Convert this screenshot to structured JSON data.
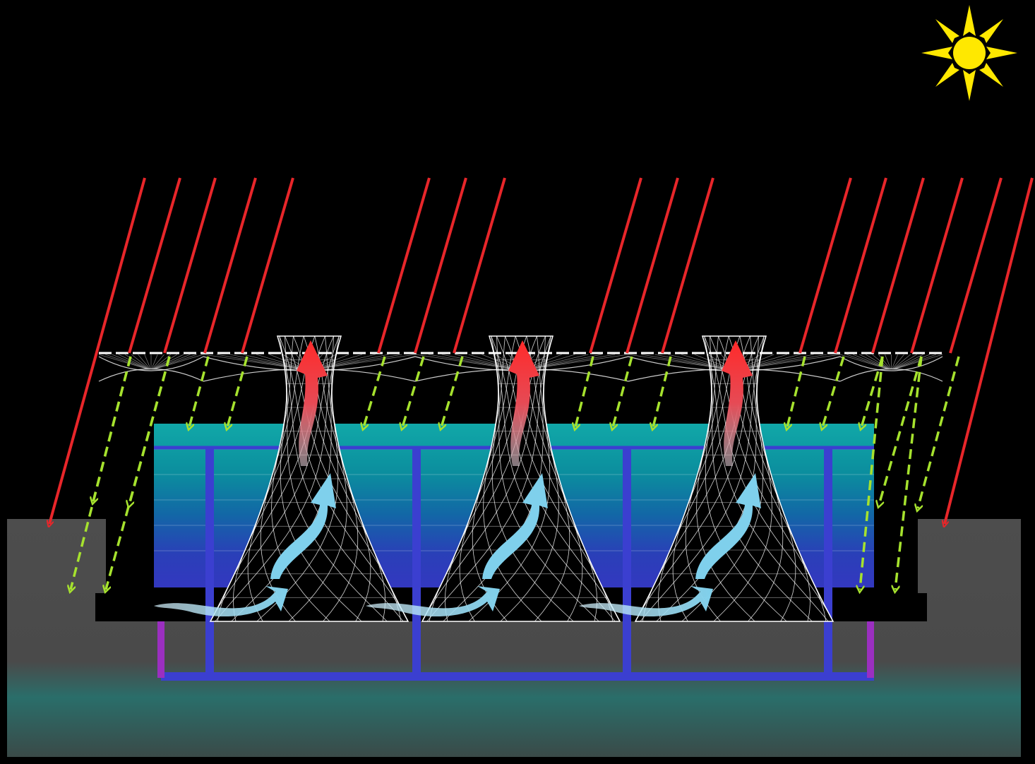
{
  "diagram": {
    "elements": {
      "sun": "sun-icon",
      "solar_rays": "red-arrow",
      "diffuse_light": "green-dashed-arrow",
      "canopy": "white-lattice-canopy",
      "towers": "hyperboloid-lattice-tower",
      "airflow_cool": "light-blue-curved-arrow",
      "airflow_hot": "red-curved-arrow",
      "water_pipes": "blue-pipe-network",
      "ground": "grey-earth-section"
    },
    "colors": {
      "background": "#000000",
      "sun": "#ffe800",
      "solar_ray": "#e8262a",
      "diffuse_ray": "#a6e22e",
      "canopy_line": "#ffffff",
      "cool_air": "#8fd8ee",
      "hot_air": "#e02a2a",
      "pipe": "#3b3fd0",
      "pipe_accent": "#9b2fc0",
      "ground": "#4a4a4a",
      "ground_deep": "#1f6a66",
      "pool_top": "#0fa3a6",
      "pool_bottom": "#2a35b8"
    },
    "counts": {
      "towers": 3,
      "canopy_bays": 4
    }
  }
}
